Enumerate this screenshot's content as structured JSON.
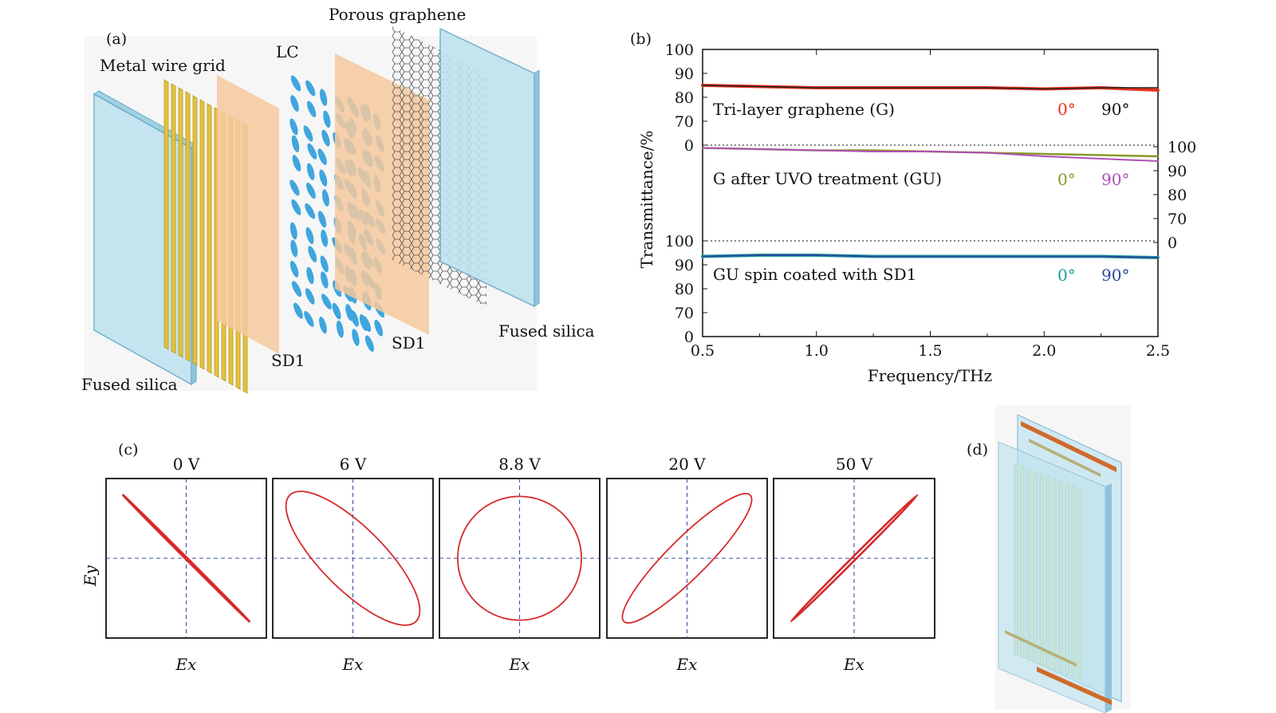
{
  "panel_a": {
    "label": "(a)",
    "porous_graphene": "Porous graphene",
    "metal_wire_grid": "Metal wire grid",
    "lc": "LC",
    "sd1_left": "SD1",
    "sd1_right": "SD1",
    "fused_silica_left": "Fused silica",
    "fused_silica_right": "Fused silica"
  },
  "panel_b": {
    "label": "(b)",
    "ylabel": "Transmittance/%",
    "xlabel": "Frequency/THz",
    "legend_0deg": "0°",
    "legend_90deg": "90°",
    "colors": {
      "g_0": "#e8321e",
      "g_90": "#222222",
      "gu_0": "#8a9a2a",
      "gu_90": "#b04fb8",
      "sd1_0": "#1aa0a0",
      "sd1_90": "#2a4a9a"
    },
    "chart_data": {
      "type": "line",
      "xlabel": "Frequency/THz",
      "ylabel": "Transmittance/%",
      "xlim": [
        0.5,
        2.5
      ],
      "x_ticks": [
        "0.5",
        "1.0",
        "1.5",
        "2.0",
        "2.5"
      ],
      "left_ticks_top": [
        "100",
        "90",
        "80",
        "70",
        "0"
      ],
      "right_ticks_mid": [
        "100",
        "90",
        "80",
        "70",
        "0"
      ],
      "left_ticks_bottom": [
        "100",
        "90",
        "80",
        "70",
        "0"
      ],
      "groups": [
        {
          "name": "Tri-layer graphene (G)",
          "ylim": [
            70,
            100
          ],
          "x": [
            0.5,
            0.75,
            1.0,
            1.25,
            1.5,
            1.75,
            2.0,
            2.25,
            2.5
          ],
          "series": [
            {
              "name": "0°",
              "values": [
                85,
                84.5,
                84,
                84,
                84,
                84,
                83.5,
                84,
                83
              ]
            },
            {
              "name": "90°",
              "values": [
                85,
                84.5,
                84,
                84,
                84,
                84,
                83.5,
                84,
                84
              ]
            }
          ]
        },
        {
          "name": "G after UVO treatment (GU)",
          "ylim": [
            70,
            100
          ],
          "x": [
            0.5,
            0.75,
            1.0,
            1.25,
            1.5,
            1.75,
            2.0,
            2.25,
            2.5
          ],
          "series": [
            {
              "name": "0°",
              "values": [
                99.5,
                99,
                98.5,
                98.5,
                98,
                97.5,
                97,
                96.5,
                96
              ]
            },
            {
              "name": "90°",
              "values": [
                99.5,
                99,
                98.5,
                98,
                98,
                97.5,
                96,
                95,
                94
              ]
            }
          ]
        },
        {
          "name": "GU spin coated with SD1",
          "ylim": [
            70,
            100
          ],
          "x": [
            0.5,
            0.75,
            1.0,
            1.25,
            1.5,
            1.75,
            2.0,
            2.25,
            2.5
          ],
          "series": [
            {
              "name": "0°",
              "values": [
                93.5,
                94,
                94,
                93.5,
                93.5,
                93.5,
                93.5,
                93.5,
                93
              ]
            },
            {
              "name": "90°",
              "values": [
                93.5,
                94,
                94,
                93.5,
                93.5,
                93.5,
                93.5,
                93.5,
                93
              ]
            }
          ]
        }
      ]
    }
  },
  "panel_c": {
    "label": "(c)",
    "ylabel": "Ey",
    "xlabel": "Ex",
    "plots": [
      {
        "voltage": "0 V",
        "ellipse": {
          "angle_deg": -45,
          "major": 1.0,
          "minor": 0.01
        }
      },
      {
        "voltage": "6 V",
        "ellipse": {
          "angle_deg": -45,
          "major": 1.0,
          "minor": 0.35
        }
      },
      {
        "voltage": "8.8 V",
        "ellipse": {
          "angle_deg": 0,
          "major": 0.8,
          "minor": 0.8
        }
      },
      {
        "voltage": "20 V",
        "ellipse": {
          "angle_deg": 45,
          "major": 1.0,
          "minor": 0.22
        }
      },
      {
        "voltage": "50 V",
        "ellipse": {
          "angle_deg": 45,
          "major": 1.0,
          "minor": 0.02
        }
      }
    ]
  },
  "panel_d": {
    "label": "(d)"
  }
}
